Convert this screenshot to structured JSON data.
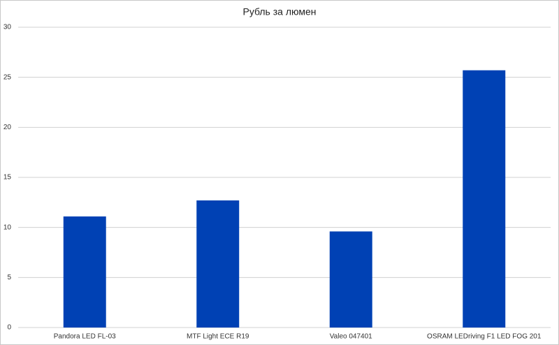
{
  "chart_data": {
    "type": "bar",
    "title": "Рубль за люмен",
    "categories": [
      "Pandora LED FL-03",
      "MTF Light ECE R19",
      "Valeo 047401",
      "OSRAM LEDriving F1 LED FOG 201"
    ],
    "values": [
      11.1,
      12.7,
      9.6,
      25.7
    ],
    "color": "#0041b4",
    "ylim": [
      0,
      30
    ],
    "yticks": [
      0,
      5,
      10,
      15,
      20,
      25,
      30
    ],
    "grid": true
  }
}
